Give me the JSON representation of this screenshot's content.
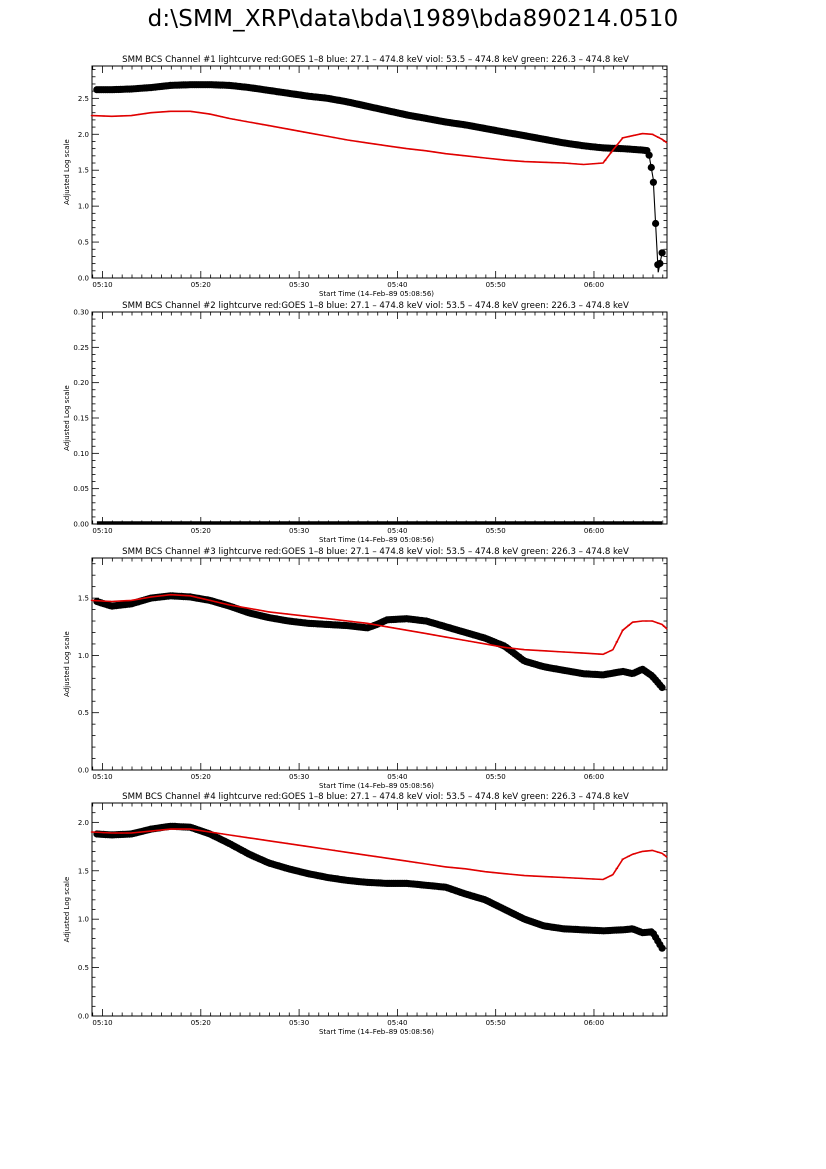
{
  "page": {
    "title": "d:\\SMM_XRP\\data\\bda\\1989\\bda890214.0510"
  },
  "chart_data": [
    {
      "type": "scatter",
      "title": "SMM BCS Channel #1 lightcurve  red:GOES 1–8  blue: 27.1 – 474.8 keV  viol: 53.5 – 474.8 keV  green: 226.3 – 474.8 keV",
      "xlabel": "Start Time (14–Feb–89 05:08:56)",
      "ylabel": "Adjusted Log scale",
      "x_unit": "minutes after 05:08:56",
      "xlim": [
        0,
        58.5
      ],
      "ylim": [
        0,
        2.95
      ],
      "xticks": [
        "05:10",
        "05:20",
        "05:30",
        "05:40",
        "05:50",
        "06:00"
      ],
      "yticks": [
        "0.0",
        "0.5",
        "1.0",
        "1.5",
        "2.0",
        "2.5"
      ],
      "series": [
        {
          "name": "BCS",
          "color": "#000000",
          "style": "dots",
          "x": [
            0.5,
            2,
            4,
            6,
            8,
            10,
            12,
            14,
            16,
            18,
            20,
            22,
            24,
            26,
            28,
            30,
            32,
            34,
            36,
            38,
            40,
            42,
            44,
            46,
            48,
            50,
            52,
            54,
            55,
            56,
            56.6,
            57.1,
            57.6,
            58
          ],
          "y": [
            2.62,
            2.62,
            2.63,
            2.65,
            2.68,
            2.69,
            2.69,
            2.68,
            2.65,
            2.61,
            2.57,
            2.53,
            2.5,
            2.45,
            2.39,
            2.33,
            2.27,
            2.22,
            2.17,
            2.13,
            2.08,
            2.03,
            1.98,
            1.93,
            1.88,
            1.84,
            1.81,
            1.8,
            1.79,
            1.78,
            1.77,
            1.38,
            0.08,
            0.35
          ]
        },
        {
          "name": "GOES 1–8",
          "color": "#e00000",
          "style": "line",
          "x": [
            0,
            2,
            4,
            6,
            8,
            10,
            12,
            14,
            16,
            18,
            20,
            22,
            24,
            26,
            28,
            30,
            32,
            34,
            36,
            38,
            40,
            42,
            44,
            46,
            48,
            50,
            52,
            53,
            54,
            55,
            56,
            57,
            58,
            58.5
          ],
          "y": [
            2.26,
            2.25,
            2.26,
            2.3,
            2.32,
            2.32,
            2.28,
            2.22,
            2.17,
            2.12,
            2.07,
            2.02,
            1.97,
            1.92,
            1.88,
            1.84,
            1.8,
            1.77,
            1.73,
            1.7,
            1.67,
            1.64,
            1.62,
            1.61,
            1.6,
            1.58,
            1.6,
            1.78,
            1.95,
            1.98,
            2.01,
            2.0,
            1.93,
            1.88
          ]
        }
      ]
    },
    {
      "type": "scatter",
      "title": "SMM BCS Channel #2 lightcurve  red:GOES 1–8  blue: 27.1 – 474.8 keV  viol: 53.5 – 474.8 keV  green: 226.3 – 474.8 keV",
      "xlabel": "Start Time (14–Feb–89 05:08:56)",
      "ylabel": "Adjusted Log scale",
      "x_unit": "minutes after 05:08:56",
      "xlim": [
        0,
        58.5
      ],
      "ylim": [
        0,
        0.3
      ],
      "xticks": [
        "05:10",
        "05:20",
        "05:30",
        "05:40",
        "05:50",
        "06:00"
      ],
      "yticks": [
        "0.00",
        "0.05",
        "0.10",
        "0.15",
        "0.20",
        "0.25",
        "0.30"
      ],
      "series": [
        {
          "name": "BCS",
          "color": "#000000",
          "style": "flat",
          "x": [
            0.5,
            58
          ],
          "y": [
            0,
            0
          ]
        }
      ]
    },
    {
      "type": "scatter",
      "title": "SMM BCS Channel #3 lightcurve  red:GOES 1–8  blue: 27.1 – 474.8 keV  viol: 53.5 – 474.8 keV  green: 226.3 – 474.8 keV",
      "xlabel": "Start Time (14–Feb–89 05:08:56)",
      "ylabel": "Adjusted Log scale",
      "x_unit": "minutes after 05:08:56",
      "xlim": [
        0,
        58.5
      ],
      "ylim": [
        0,
        1.85
      ],
      "xticks": [
        "05:10",
        "05:20",
        "05:30",
        "05:40",
        "05:50",
        "06:00"
      ],
      "yticks": [
        "0.0",
        "0.5",
        "1.0",
        "1.5"
      ],
      "series": [
        {
          "name": "BCS",
          "color": "#000000",
          "style": "dots",
          "x": [
            0.5,
            2,
            4,
            6,
            8,
            10,
            12,
            14,
            16,
            18,
            20,
            22,
            24,
            26,
            28,
            29,
            30,
            32,
            34,
            36,
            38,
            40,
            42,
            44,
            46,
            48,
            50,
            52,
            54,
            55,
            56,
            57,
            58
          ],
          "y": [
            1.47,
            1.43,
            1.45,
            1.5,
            1.52,
            1.51,
            1.48,
            1.43,
            1.37,
            1.33,
            1.3,
            1.28,
            1.27,
            1.26,
            1.24,
            1.27,
            1.31,
            1.32,
            1.3,
            1.25,
            1.2,
            1.15,
            1.08,
            0.95,
            0.9,
            0.87,
            0.84,
            0.83,
            0.86,
            0.84,
            0.88,
            0.82,
            0.72
          ]
        },
        {
          "name": "GOES 1–8",
          "color": "#e00000",
          "style": "line",
          "x": [
            0,
            2,
            4,
            6,
            8,
            10,
            12,
            14,
            16,
            18,
            20,
            22,
            24,
            26,
            28,
            30,
            32,
            34,
            36,
            38,
            40,
            42,
            44,
            46,
            48,
            50,
            52,
            53,
            54,
            55,
            56,
            57,
            58,
            58.5
          ],
          "y": [
            1.48,
            1.47,
            1.48,
            1.51,
            1.53,
            1.52,
            1.48,
            1.44,
            1.41,
            1.38,
            1.36,
            1.34,
            1.32,
            1.3,
            1.28,
            1.25,
            1.22,
            1.19,
            1.16,
            1.13,
            1.1,
            1.07,
            1.05,
            1.04,
            1.03,
            1.02,
            1.01,
            1.05,
            1.22,
            1.29,
            1.3,
            1.3,
            1.27,
            1.23
          ]
        }
      ]
    },
    {
      "type": "scatter",
      "title": "SMM BCS Channel #4 lightcurve  red:GOES 1–8  blue: 27.1 – 474.8 keV  viol: 53.5 – 474.8 keV  green: 226.3 – 474.8 keV",
      "xlabel": "Start Time (14–Feb–89 05:08:56)",
      "ylabel": "Adjusted Log scale",
      "x_unit": "minutes after 05:08:56",
      "xlim": [
        0,
        58.5
      ],
      "ylim": [
        0,
        2.2
      ],
      "xticks": [
        "05:10",
        "05:20",
        "05:30",
        "05:40",
        "05:50",
        "06:00"
      ],
      "yticks": [
        "0.0",
        "0.5",
        "1.0",
        "1.5",
        "2.0"
      ],
      "series": [
        {
          "name": "BCS",
          "color": "#000000",
          "style": "dots",
          "x": [
            0.5,
            2,
            4,
            6,
            8,
            10,
            12,
            14,
            16,
            18,
            20,
            22,
            24,
            26,
            28,
            30,
            32,
            34,
            36,
            38,
            40,
            42,
            44,
            46,
            48,
            50,
            52,
            54,
            55,
            56,
            57,
            58
          ],
          "y": [
            1.88,
            1.87,
            1.88,
            1.93,
            1.96,
            1.95,
            1.88,
            1.78,
            1.67,
            1.58,
            1.52,
            1.47,
            1.43,
            1.4,
            1.38,
            1.37,
            1.37,
            1.35,
            1.33,
            1.26,
            1.2,
            1.1,
            1.0,
            0.93,
            0.9,
            0.89,
            0.88,
            0.89,
            0.9,
            0.86,
            0.87,
            0.7
          ]
        },
        {
          "name": "GOES 1–8",
          "color": "#e00000",
          "style": "line",
          "x": [
            0,
            2,
            4,
            6,
            8,
            10,
            12,
            14,
            16,
            18,
            20,
            22,
            24,
            26,
            28,
            30,
            32,
            34,
            36,
            38,
            40,
            42,
            44,
            46,
            48,
            50,
            52,
            53,
            54,
            55,
            56,
            57,
            58,
            58.5
          ],
          "y": [
            1.9,
            1.89,
            1.89,
            1.91,
            1.93,
            1.93,
            1.9,
            1.87,
            1.84,
            1.81,
            1.78,
            1.75,
            1.72,
            1.69,
            1.66,
            1.63,
            1.6,
            1.57,
            1.54,
            1.52,
            1.49,
            1.47,
            1.45,
            1.44,
            1.43,
            1.42,
            1.41,
            1.46,
            1.62,
            1.67,
            1.7,
            1.71,
            1.68,
            1.64
          ]
        }
      ]
    }
  ]
}
